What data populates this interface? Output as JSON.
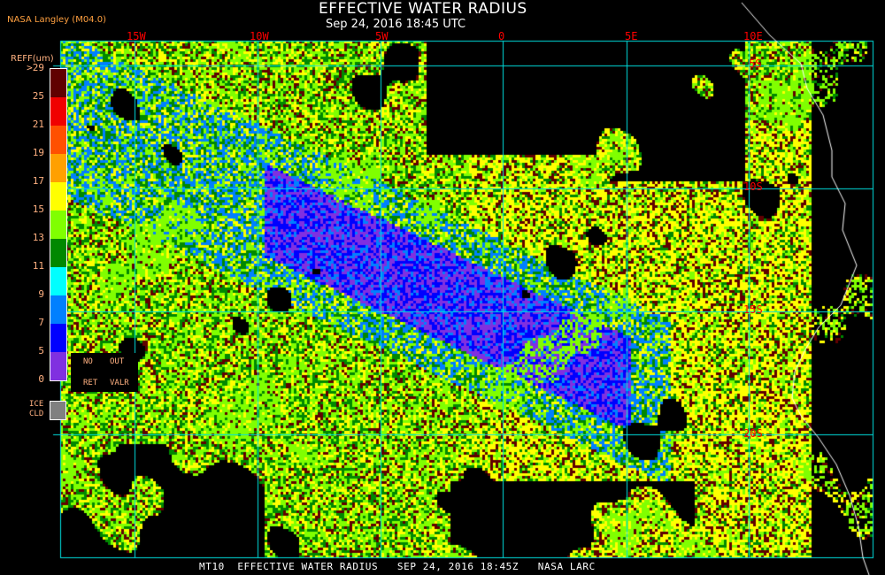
{
  "header": {
    "title": "EFFECTIVE WATER RADIUS",
    "subtitle": "Sep 24, 2016 18:45 UTC",
    "credit": "NASA Langley (M04.0)"
  },
  "map": {
    "longitude_labels": [
      "15W",
      "10W",
      "5W",
      "0",
      "5E",
      "10E"
    ],
    "latitude_labels": [
      "5S",
      "10S",
      "15S",
      "20S"
    ],
    "grid_color": "#00e0e0",
    "coastline_color": "#ffffff"
  },
  "legend": {
    "title": "REFF(um)",
    "labels": [
      ">29",
      "25",
      "21",
      "19",
      "17",
      "15",
      "13",
      "11",
      "9",
      "7",
      "5",
      "0"
    ],
    "colors": [
      "#600000",
      "#f00000",
      "#ff5000",
      "#ffa000",
      "#ffff00",
      "#80ff00",
      "#008800",
      "#00ffff",
      "#0080ff",
      "#0000ff",
      "#8030e0"
    ],
    "no_retrieval": {
      "line1_a": "NO",
      "line1_b": "OUT",
      "line2_a": "RET",
      "line2_b": "VALR"
    },
    "ice_cloud": {
      "line1": "ICE",
      "line2": "CLD",
      "color": "#808080"
    }
  },
  "footer": "MT10  EFFECTIVE WATER RADIUS   SEP 24, 2016 18:45Z   NASA LARC"
}
